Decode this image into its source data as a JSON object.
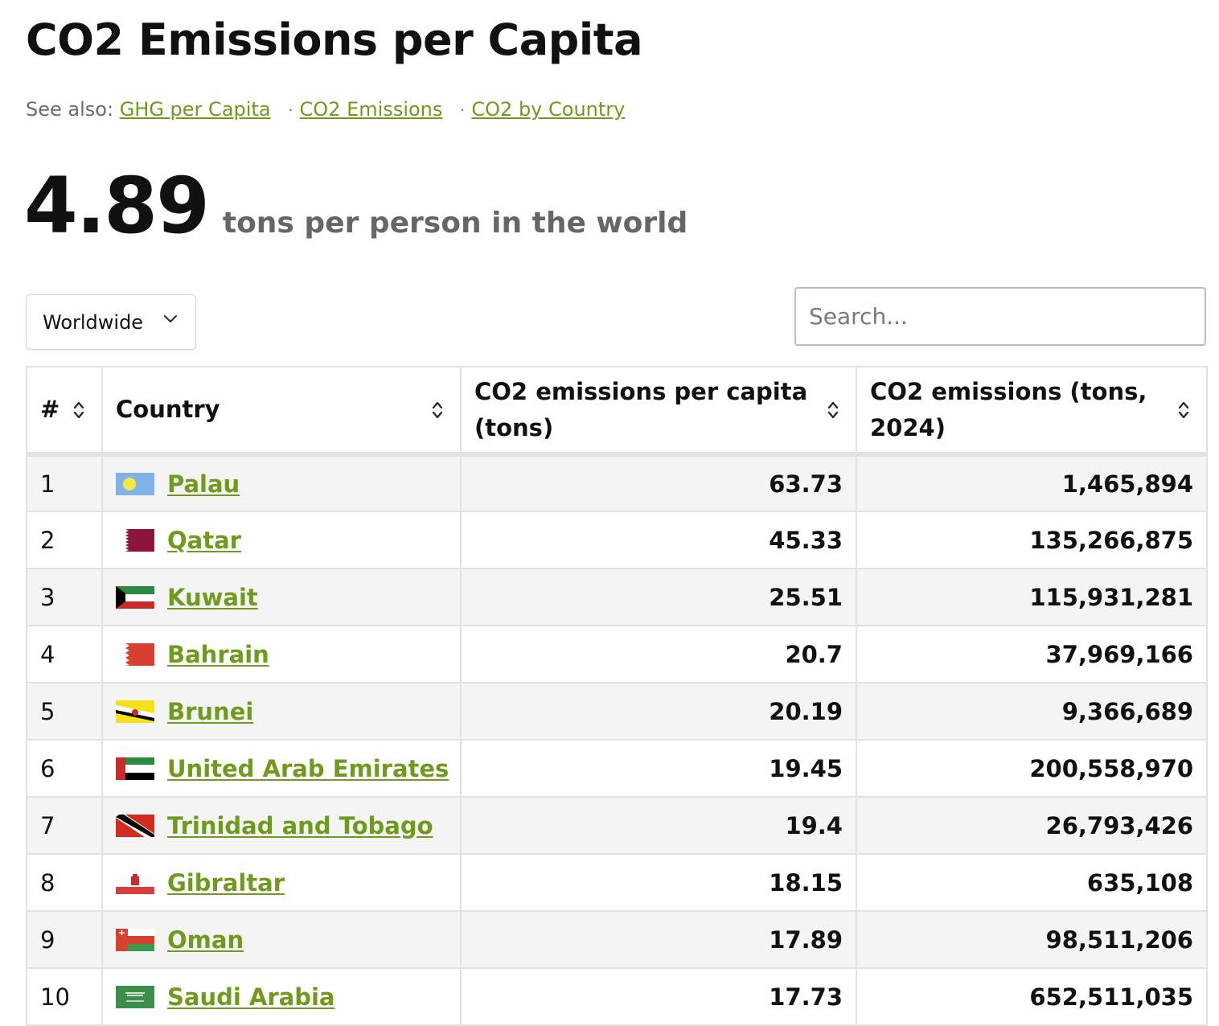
{
  "header": {
    "title": "CO2 Emissions per Capita",
    "see_also_label": "See also:",
    "see_also_links": [
      "GHG per Capita",
      "CO2 Emissions",
      "CO2 by Country"
    ]
  },
  "stat": {
    "value": "4.89",
    "label": "tons per person in the world"
  },
  "controls": {
    "region": "Worldwide",
    "search_placeholder": "Search..."
  },
  "table": {
    "columns": [
      "#",
      "Country",
      "CO2 emissions per capita (tons)",
      "CO2 emissions (tons, 2024)"
    ],
    "rows": [
      {
        "rank": "1",
        "country": "Palau",
        "per_capita": "63.73",
        "total": "1,465,894",
        "flag": "palau-flag-icon"
      },
      {
        "rank": "2",
        "country": "Qatar",
        "per_capita": "45.33",
        "total": "135,266,875",
        "flag": "qatar-flag-icon"
      },
      {
        "rank": "3",
        "country": "Kuwait",
        "per_capita": "25.51",
        "total": "115,931,281",
        "flag": "kuwait-flag-icon"
      },
      {
        "rank": "4",
        "country": "Bahrain",
        "per_capita": "20.7",
        "total": "37,969,166",
        "flag": "bahrain-flag-icon"
      },
      {
        "rank": "5",
        "country": "Brunei",
        "per_capita": "20.19",
        "total": "9,366,689",
        "flag": "brunei-flag-icon"
      },
      {
        "rank": "6",
        "country": "United Arab Emirates",
        "per_capita": "19.45",
        "total": "200,558,970",
        "flag": "uae-flag-icon"
      },
      {
        "rank": "7",
        "country": "Trinidad and Tobago",
        "per_capita": "19.4",
        "total": "26,793,426",
        "flag": "trinidad-flag-icon"
      },
      {
        "rank": "8",
        "country": "Gibraltar",
        "per_capita": "18.15",
        "total": "635,108",
        "flag": "gibraltar-flag-icon"
      },
      {
        "rank": "9",
        "country": "Oman",
        "per_capita": "17.89",
        "total": "98,511,206",
        "flag": "oman-flag-icon"
      },
      {
        "rank": "10",
        "country": "Saudi Arabia",
        "per_capita": "17.73",
        "total": "652,511,035",
        "flag": "saudi-arabia-flag-icon"
      }
    ]
  },
  "colors": {
    "link": "#6e9b1c",
    "stripe": "#f4f4f4",
    "border": "#e2e2e2"
  }
}
